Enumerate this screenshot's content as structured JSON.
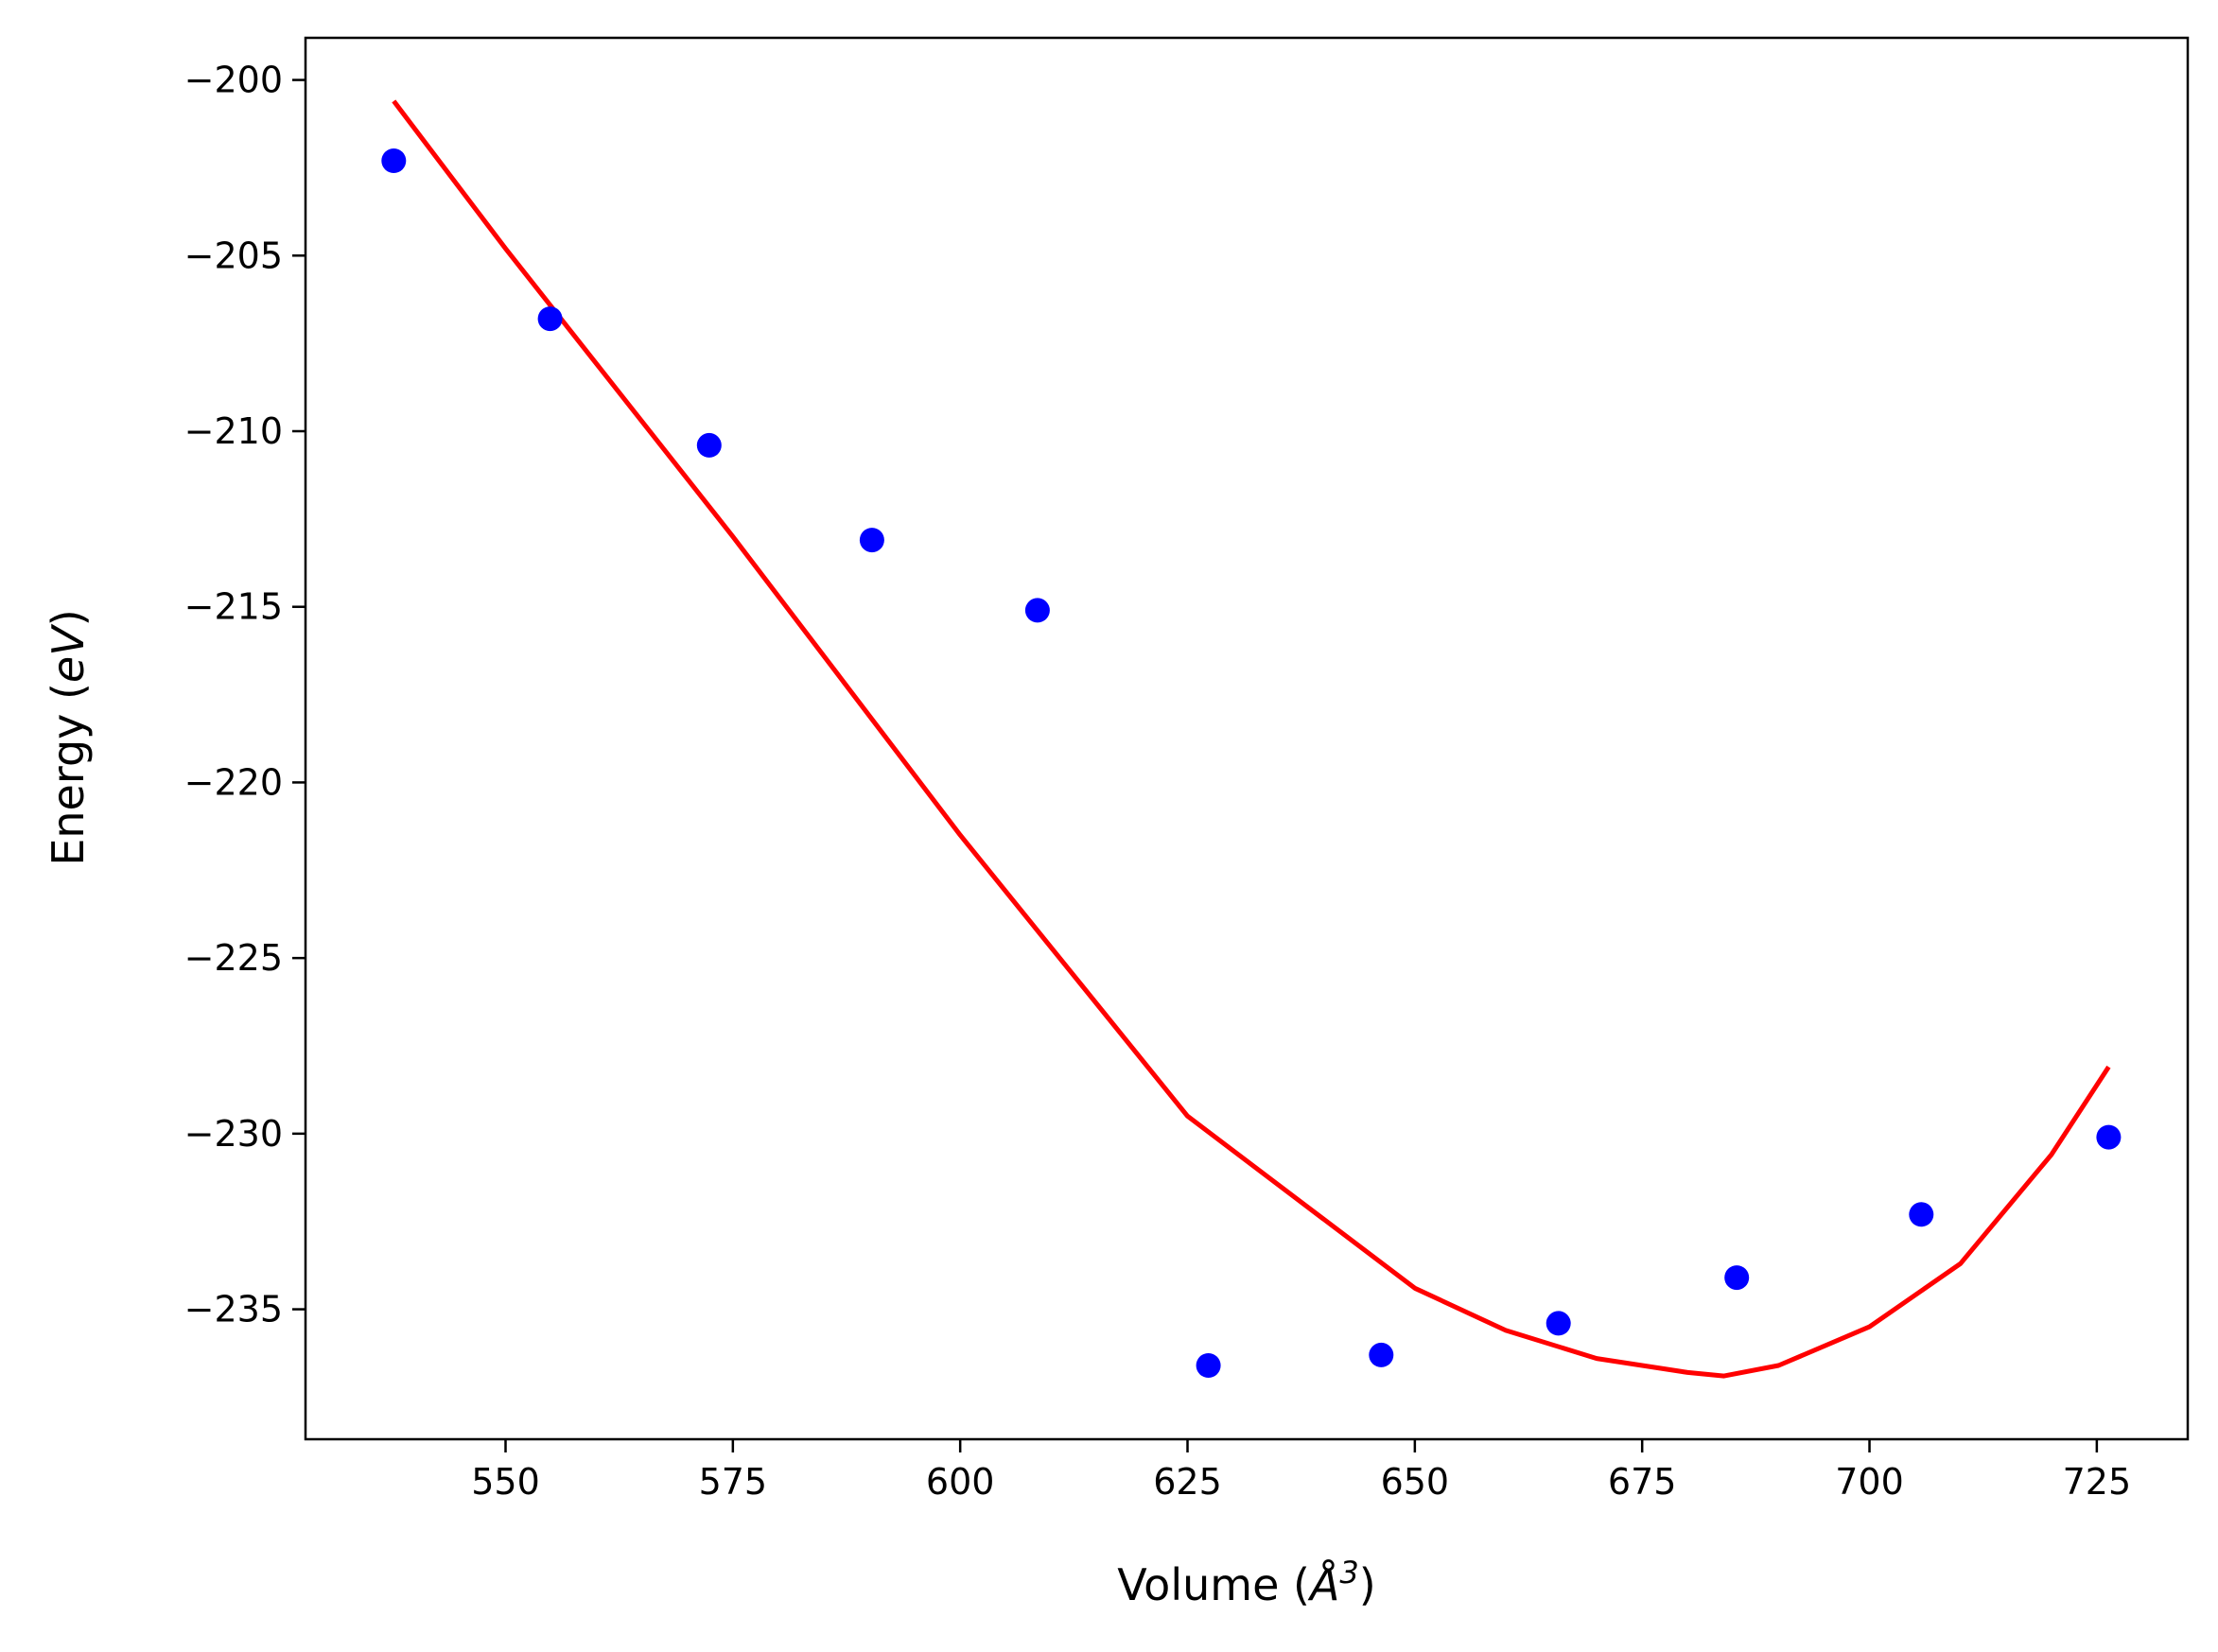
{
  "chart_data": {
    "type": "scatter",
    "title": "",
    "xlabel": "Volume (Å³)",
    "ylabel": "Energy (eV)",
    "xlabel_parts": {
      "prefix": "Volume (",
      "symbol": "Å",
      "superscript": "3",
      "suffix": ")"
    },
    "ylabel_parts": {
      "prefix": "Energy (",
      "italic": "eV",
      "suffix": ")"
    },
    "xlim": [
      528,
      735
    ],
    "ylim": [
      -238.7,
      -198.8
    ],
    "xticks": [
      550,
      575,
      600,
      625,
      650,
      675,
      700,
      725
    ],
    "yticks": [
      -200,
      -205,
      -210,
      -215,
      -220,
      -225,
      -230,
      -235
    ],
    "xtick_labels": [
      "550",
      "575",
      "600",
      "625",
      "650",
      "675",
      "700",
      "725"
    ],
    "ytick_labels": [
      "−200",
      "−205",
      "−210",
      "−215",
      "−220",
      "−225",
      "−230",
      "−235"
    ],
    "grid": false,
    "series": [
      {
        "type": "scatter",
        "color": "#0000ff",
        "x": [
          537.7,
          554.9,
          572.4,
          590.3,
          608.5,
          627.3,
          646.3,
          665.8,
          685.4,
          705.7,
          726.3
        ],
        "y": [
          -202.3,
          -206.8,
          -210.4,
          -213.1,
          -215.1,
          -236.6,
          -236.3,
          -235.4,
          -234.1,
          -232.3,
          -230.1
        ]
      },
      {
        "type": "line",
        "color": "#ff0000",
        "x": [
          537.7,
          550,
          575,
          600,
          625,
          650,
          660,
          670,
          680,
          684,
          690,
          700,
          710,
          720,
          726.3
        ],
        "y": [
          -200.6,
          -204.8,
          -213.0,
          -221.5,
          -229.5,
          -234.4,
          -235.6,
          -236.4,
          -236.8,
          -236.9,
          -236.6,
          -235.5,
          -233.7,
          -230.6,
          -228.1
        ]
      }
    ]
  }
}
